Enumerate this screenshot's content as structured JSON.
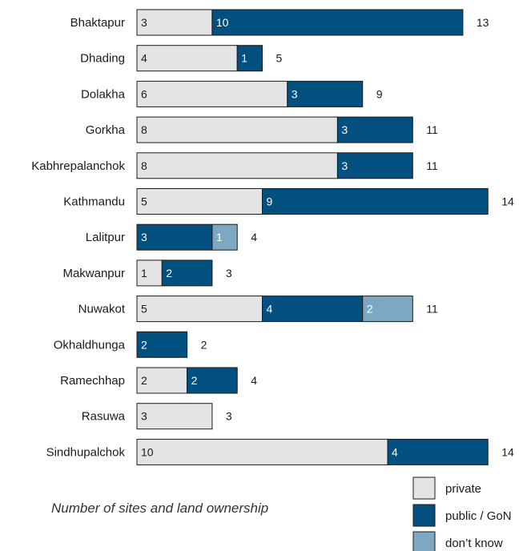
{
  "chart_data": {
    "type": "bar",
    "orientation": "horizontal",
    "stacked": true,
    "caption": "Number of sites and land ownership",
    "categories": [
      "Bhaktapur",
      "Dhading",
      "Dolakha",
      "Gorkha",
      "Kabhrepalanchok",
      "Kathmandu",
      "Lalitpur",
      "Makwanpur",
      "Nuwakot",
      "Okhaldhunga",
      "Ramechhap",
      "Rasuwa",
      "Sindhupalchok"
    ],
    "series": [
      {
        "name": "private",
        "color": "#e3e4e6",
        "values": [
          3,
          4,
          6,
          8,
          8,
          5,
          0,
          1,
          5,
          0,
          2,
          3,
          10
        ]
      },
      {
        "name": "public / GoN",
        "color": "#02507f",
        "values": [
          10,
          1,
          3,
          3,
          3,
          9,
          3,
          2,
          4,
          2,
          2,
          0,
          4
        ]
      },
      {
        "name": "don’t know",
        "color": "#7ea8c1",
        "values": [
          0,
          0,
          0,
          0,
          0,
          0,
          1,
          0,
          2,
          0,
          0,
          0,
          0
        ]
      }
    ],
    "totals": [
      13,
      5,
      9,
      11,
      11,
      14,
      4,
      3,
      11,
      2,
      4,
      3,
      14
    ],
    "legend_position": "bottom-right",
    "grid": false
  }
}
